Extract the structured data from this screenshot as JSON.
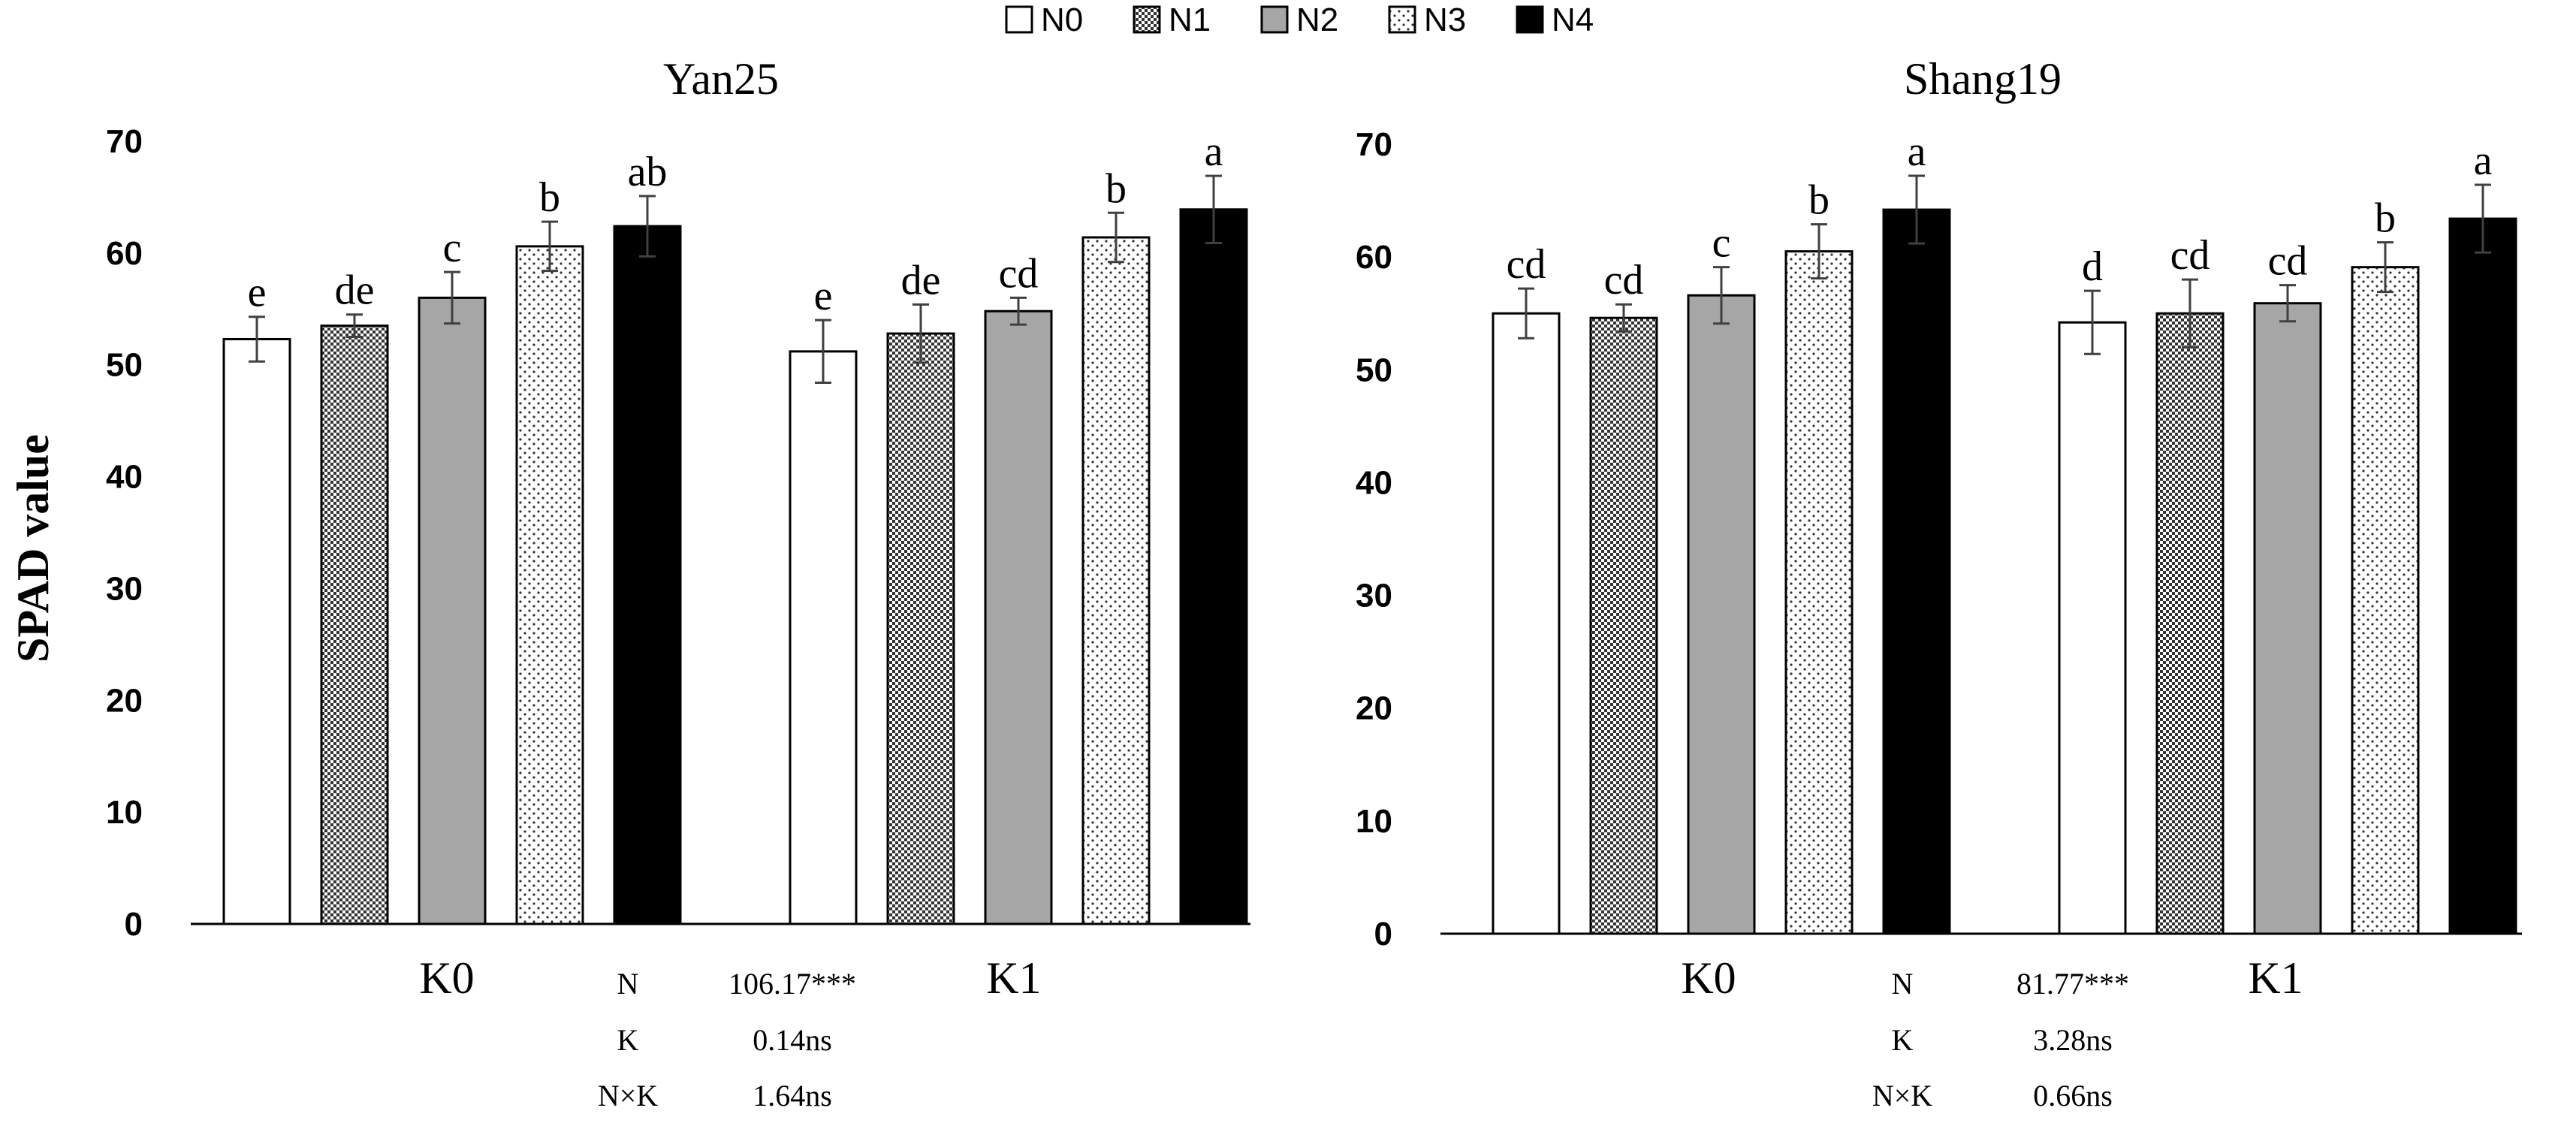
{
  "legend": [
    {
      "key": "N0",
      "fill": "white"
    },
    {
      "key": "N1",
      "fill": "checker"
    },
    {
      "key": "N2",
      "fill": "gray"
    },
    {
      "key": "N3",
      "fill": "dots"
    },
    {
      "key": "N4",
      "fill": "black"
    }
  ],
  "colors": {
    "bar_gray": "#a6a6a6",
    "bar_black": "#000000",
    "outline": "#000000",
    "errorbar": "#404040"
  },
  "ylabel": "SPAD value",
  "chart_data": [
    {
      "type": "bar",
      "title": "Yan25",
      "ylabel": "SPAD value",
      "ylim": [
        0,
        70
      ],
      "yticks": [
        "0",
        "10",
        "20",
        "30",
        "40",
        "50",
        "60",
        "70"
      ],
      "categories": [
        "K0",
        "K1"
      ],
      "series": [
        {
          "name": "N0",
          "values": [
            52.3,
            51.2
          ],
          "errors": [
            2.0,
            2.8
          ],
          "letters": [
            "e",
            "e"
          ]
        },
        {
          "name": "N1",
          "values": [
            53.5,
            52.8
          ],
          "errors": [
            1.0,
            2.6
          ],
          "letters": [
            "de",
            "de"
          ]
        },
        {
          "name": "N2",
          "values": [
            56.0,
            54.8
          ],
          "errors": [
            2.3,
            1.2
          ],
          "letters": [
            "c",
            "cd"
          ]
        },
        {
          "name": "N3",
          "values": [
            60.6,
            61.4
          ],
          "errors": [
            2.2,
            2.2
          ],
          "letters": [
            "b",
            "b"
          ]
        },
        {
          "name": "N4",
          "values": [
            62.4,
            63.9
          ],
          "errors": [
            2.7,
            3.0
          ],
          "letters": [
            "ab",
            "a"
          ]
        }
      ],
      "anova": [
        {
          "factor": "N",
          "value": "106.17***"
        },
        {
          "factor": "K",
          "value": "0.14ns"
        },
        {
          "factor": "N×K",
          "value": "1.64ns"
        }
      ]
    },
    {
      "type": "bar",
      "title": "Shang19",
      "ylabel": "",
      "ylim": [
        0,
        70
      ],
      "yticks": [
        "0",
        "10",
        "20",
        "30",
        "40",
        "50",
        "60",
        "70"
      ],
      "categories": [
        "K0",
        "K1"
      ],
      "series": [
        {
          "name": "N0",
          "values": [
            55.0,
            54.2
          ],
          "errors": [
            2.2,
            2.8
          ],
          "letters": [
            "cd",
            "d"
          ]
        },
        {
          "name": "N1",
          "values": [
            54.6,
            55.0
          ],
          "errors": [
            1.2,
            3.0
          ],
          "letters": [
            "cd",
            "cd"
          ]
        },
        {
          "name": "N2",
          "values": [
            56.6,
            55.9
          ],
          "errors": [
            2.5,
            1.6
          ],
          "letters": [
            "c",
            "cd"
          ]
        },
        {
          "name": "N3",
          "values": [
            60.5,
            59.1
          ],
          "errors": [
            2.4,
            2.2
          ],
          "letters": [
            "b",
            "b"
          ]
        },
        {
          "name": "N4",
          "values": [
            64.2,
            63.4
          ],
          "errors": [
            3.0,
            3.0
          ],
          "letters": [
            "a",
            "a"
          ]
        }
      ],
      "anova": [
        {
          "factor": "N",
          "value": "81.77***"
        },
        {
          "factor": "K",
          "value": "3.28ns"
        },
        {
          "factor": "N×K",
          "value": "0.66ns"
        }
      ]
    }
  ]
}
